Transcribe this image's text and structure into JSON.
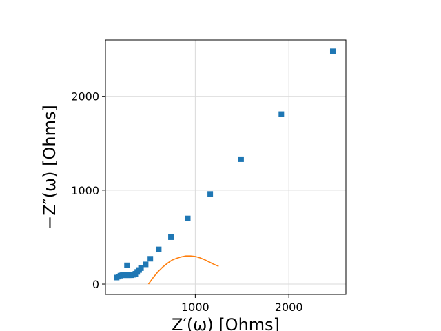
{
  "chart_data": {
    "type": "scatter",
    "xlabel": "Z′(ω) [Ohms]",
    "ylabel": "−Z″(ω) [Ohms]",
    "xlim": [
      40,
      2610
    ],
    "ylim": [
      -110,
      2600
    ],
    "x_ticks": [
      1000,
      2000
    ],
    "y_ticks": [
      0,
      1000,
      2000
    ],
    "x_tick_labels": [
      "1000",
      "2000"
    ],
    "y_tick_labels": [
      "0",
      "1000",
      "2000"
    ],
    "grid": true,
    "colors": {
      "measured": "#1f77b4",
      "fit": "#ff7f0e",
      "grid": "#d9d9d9"
    },
    "series": [
      {
        "kind": "markers",
        "marker": "square",
        "color": "#1f77b4",
        "x": [
          160,
          180,
          200,
          220,
          240,
          260,
          280,
          300,
          320,
          340,
          360,
          380,
          400,
          420,
          470,
          520,
          610,
          740,
          920,
          1160,
          1490,
          1920,
          2470,
          270
        ],
        "y": [
          70,
          80,
          90,
          95,
          95,
          95,
          95,
          95,
          95,
          100,
          110,
          130,
          150,
          170,
          210,
          270,
          370,
          500,
          700,
          960,
          1330,
          1810,
          2480,
          200
        ]
      },
      {
        "kind": "line",
        "color": "#ff7f0e",
        "x": [
          500,
          550,
          600,
          650,
          700,
          750,
          800,
          850,
          900,
          950,
          1000,
          1050,
          1100,
          1150,
          1200,
          1250
        ],
        "y": [
          0,
          70,
          130,
          180,
          220,
          255,
          275,
          290,
          300,
          300,
          295,
          280,
          260,
          235,
          210,
          190
        ]
      }
    ]
  }
}
